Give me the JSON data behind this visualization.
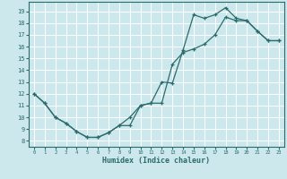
{
  "xlabel": "Humidex (Indice chaleur)",
  "xlim": [
    -0.5,
    23.5
  ],
  "ylim": [
    7.5,
    19.8
  ],
  "yticks": [
    8,
    9,
    10,
    11,
    12,
    13,
    14,
    15,
    16,
    17,
    18,
    19
  ],
  "xticks": [
    0,
    1,
    2,
    3,
    4,
    5,
    6,
    7,
    8,
    9,
    10,
    11,
    12,
    13,
    14,
    15,
    16,
    17,
    18,
    19,
    20,
    21,
    22,
    23
  ],
  "bg_color": "#cce8ed",
  "grid_color": "#ffffff",
  "line_color": "#2a6b6b",
  "curve1_x": [
    0,
    1,
    2,
    3,
    4,
    5,
    6,
    7,
    8,
    9,
    10,
    11,
    12,
    13,
    14,
    15,
    16,
    17,
    18,
    19,
    20,
    21,
    22,
    23
  ],
  "curve1_y": [
    12,
    11.2,
    10,
    9.5,
    8.8,
    8.3,
    8.3,
    8.7,
    9.3,
    9.3,
    11,
    11.2,
    13,
    12.9,
    15.7,
    18.7,
    18.4,
    18.7,
    19.3,
    18.4,
    18.2,
    17.3,
    16.5,
    16.5
  ],
  "curve2_x": [
    0,
    1,
    2,
    3,
    4,
    5,
    6,
    7,
    8,
    9,
    10,
    11,
    12,
    13,
    14,
    15,
    16,
    17,
    18,
    19,
    20,
    21,
    22,
    23
  ],
  "curve2_y": [
    12,
    11.2,
    10,
    9.5,
    8.8,
    8.3,
    8.3,
    8.7,
    9.3,
    10,
    11,
    11.2,
    11.2,
    14.5,
    15.5,
    15.8,
    16.2,
    17.0,
    18.5,
    18.2,
    18.2,
    17.3,
    16.5,
    16.5
  ]
}
